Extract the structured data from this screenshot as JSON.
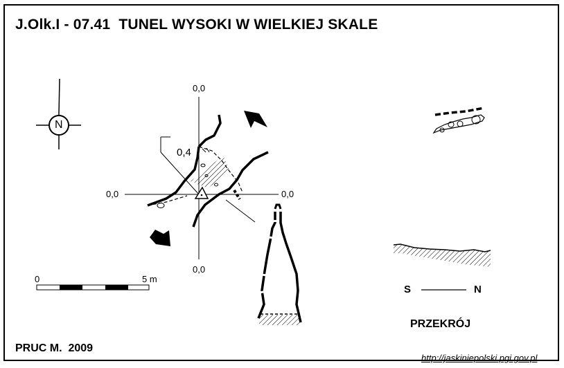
{
  "header": {
    "title": "J.Olk.I - 07.41  TUNEL WYSOKI W WIELKIEJ SKALE"
  },
  "footer": {
    "author": "PRUC M.  2009",
    "url": "http://jaskiniepolski.pgi.gov.pl"
  },
  "compass": {
    "north_letter": "N"
  },
  "plan": {
    "elev_top": "0,0",
    "elev_left": "0,0",
    "elev_right": "0,0",
    "elev_bottom": "0,0",
    "height_mark": "0,4"
  },
  "scale_bar": {
    "start_label": "0",
    "end_label": "5 m"
  },
  "section": {
    "label_s": "S",
    "label_n": "N",
    "title": "PRZEKRÓJ"
  }
}
